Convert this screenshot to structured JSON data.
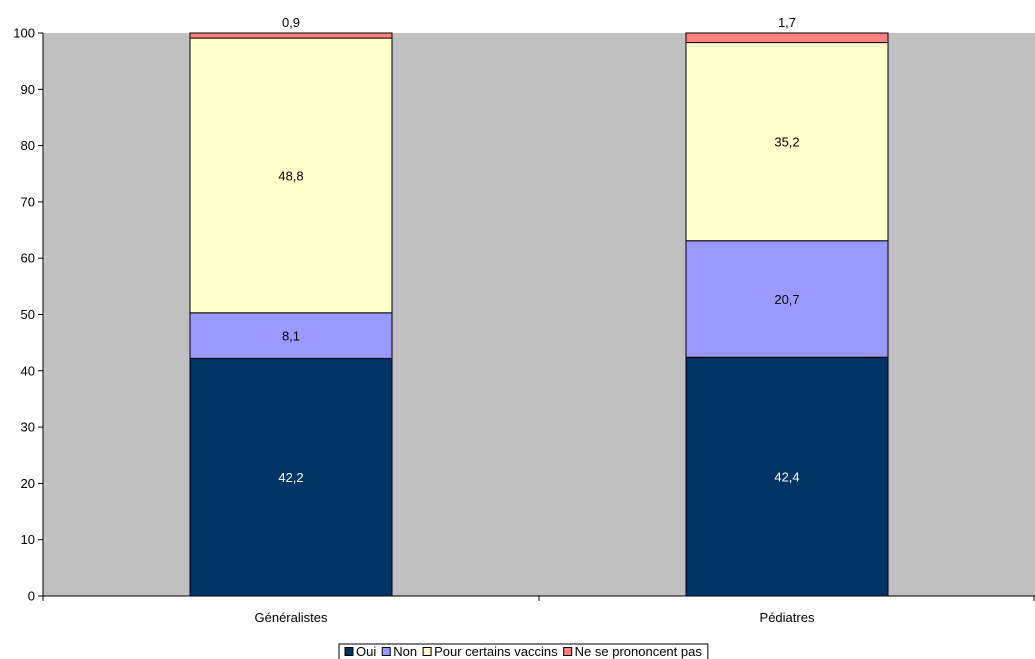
{
  "chart_data": {
    "type": "bar",
    "stacked": true,
    "categories": [
      "Généralistes",
      "Pédiatres"
    ],
    "series": [
      {
        "name": "Oui",
        "values": [
          42.2,
          42.4
        ],
        "color": "#003366",
        "label_color": "#ffffff"
      },
      {
        "name": "Non",
        "values": [
          8.1,
          20.7
        ],
        "color": "#9999FF",
        "label_color": "#000000"
      },
      {
        "name": "Pour certains vaccins",
        "values": [
          48.8,
          35.2
        ],
        "color": "#FFFFCC",
        "label_color": "#000000"
      },
      {
        "name": "Ne se prononcent pas",
        "values": [
          0.9,
          1.7
        ],
        "color": "#FF8080",
        "label_color": "#000000"
      }
    ],
    "data_labels": [
      [
        "42,2",
        "42,4"
      ],
      [
        "8,1",
        "20,7"
      ],
      [
        "48,8",
        "35,2"
      ],
      [
        "0,9",
        "1,7"
      ]
    ],
    "y_ticks": [
      "0",
      "10",
      "20",
      "30",
      "40",
      "50",
      "60",
      "70",
      "80",
      "90",
      "100"
    ],
    "ylim": [
      0,
      100
    ],
    "plot_background": "#C0C0C0",
    "grid": false,
    "legend_position": "bottom"
  }
}
